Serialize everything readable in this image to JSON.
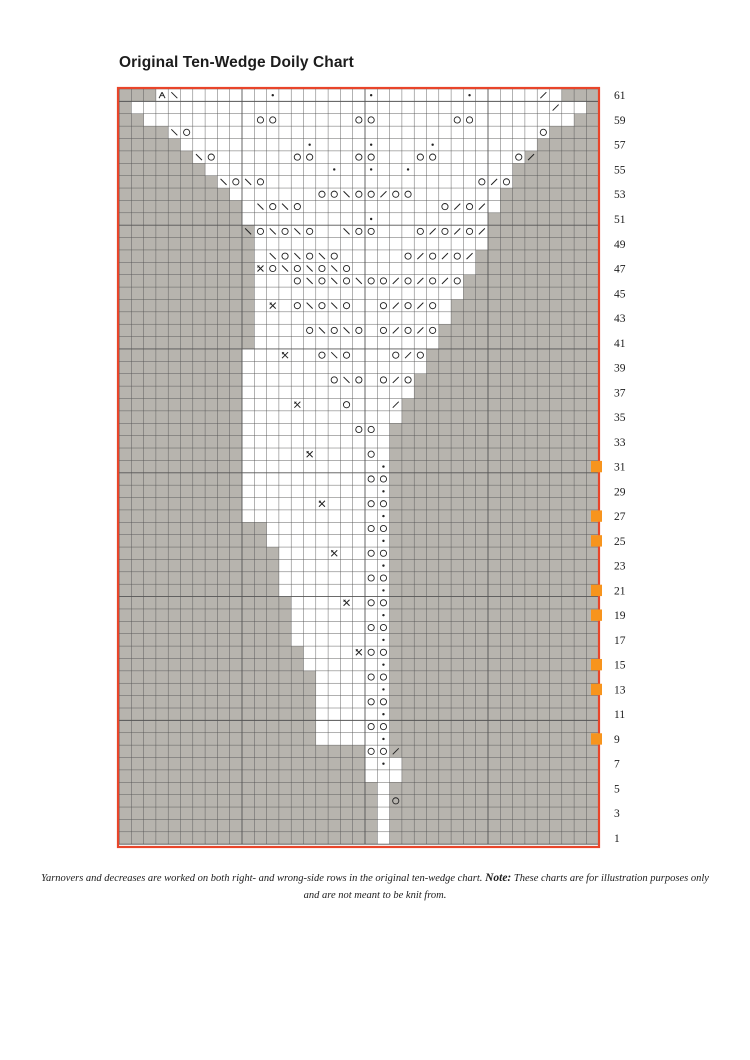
{
  "title": "Original Ten-Wedge Doily Chart",
  "caption": {
    "text_before": "Yarnovers and decreases are worked on both right- and wrong-side rows in the original ten-wedge chart.",
    "note_label": "Note:",
    "text_after": "These charts are for illustration purposes only and are not meant to be knit from."
  },
  "row_labels": [
    "61",
    "59",
    "57",
    "55",
    "53",
    "51",
    "49",
    "47",
    "45",
    "43",
    "41",
    "39",
    "37",
    "35",
    "33",
    "31",
    "29",
    "27",
    "25",
    "23",
    "21",
    "19",
    "17",
    "15",
    "13",
    "11",
    "9",
    "7",
    "5",
    "3",
    "1"
  ],
  "marked_rows": [
    31,
    27,
    25,
    21,
    19,
    15,
    13,
    9
  ],
  "colors": {
    "border": "#e8452a",
    "no_stitch": "#b7b4ae",
    "stitch": "#ffffff",
    "grid_line": "#555555",
    "marker": "#f7941d",
    "symbol": "#222222"
  },
  "chart_data": {
    "type": "knitting-chart",
    "rows": 61,
    "columns": 39,
    "white_spans_by_row": {
      "1": [
        [
          21,
          21
        ]
      ],
      "2": [
        [
          21,
          21
        ]
      ],
      "3": [
        [
          21,
          21
        ]
      ],
      "4": [
        [
          21,
          21
        ]
      ],
      "5": [
        [
          21,
          21
        ]
      ],
      "6": [
        [
          20,
          22
        ]
      ],
      "7": [
        [
          20,
          22
        ]
      ],
      "8": [
        [
          20,
          21
        ]
      ],
      "9": [
        [
          16,
          21
        ]
      ],
      "10": [
        [
          16,
          21
        ]
      ],
      "11": [
        [
          16,
          21
        ]
      ],
      "12": [
        [
          16,
          21
        ]
      ],
      "13": [
        [
          16,
          21
        ]
      ],
      "14": [
        [
          16,
          21
        ]
      ],
      "15": [
        [
          15,
          21
        ]
      ],
      "16": [
        [
          15,
          21
        ]
      ],
      "17": [
        [
          14,
          21
        ]
      ],
      "18": [
        [
          14,
          21
        ]
      ],
      "19": [
        [
          14,
          21
        ]
      ],
      "20": [
        [
          14,
          21
        ]
      ],
      "21": [
        [
          13,
          21
        ]
      ],
      "22": [
        [
          13,
          21
        ]
      ],
      "23": [
        [
          13,
          21
        ]
      ],
      "24": [
        [
          13,
          21
        ]
      ],
      "25": [
        [
          12,
          21
        ]
      ],
      "26": [
        [
          12,
          21
        ]
      ],
      "27": [
        [
          10,
          21
        ]
      ],
      "28": [
        [
          10,
          21
        ]
      ],
      "29": [
        [
          10,
          21
        ]
      ],
      "30": [
        [
          10,
          21
        ]
      ],
      "31": [
        [
          10,
          21
        ]
      ],
      "32": [
        [
          10,
          21
        ]
      ],
      "33": [
        [
          10,
          21
        ]
      ],
      "34": [
        [
          10,
          21
        ]
      ],
      "35": [
        [
          10,
          22
        ]
      ],
      "36": [
        [
          10,
          22
        ]
      ],
      "37": [
        [
          10,
          23
        ]
      ],
      "38": [
        [
          10,
          23
        ]
      ],
      "39": [
        [
          10,
          24
        ]
      ],
      "40": [
        [
          10,
          24
        ]
      ],
      "41": [
        [
          11,
          25
        ]
      ],
      "42": [
        [
          11,
          25
        ]
      ],
      "43": [
        [
          11,
          26
        ]
      ],
      "44": [
        [
          11,
          26
        ]
      ],
      "45": [
        [
          11,
          27
        ]
      ],
      "46": [
        [
          11,
          27
        ]
      ],
      "47": [
        [
          11,
          28
        ]
      ],
      "48": [
        [
          11,
          28
        ]
      ],
      "49": [
        [
          11,
          29
        ]
      ],
      "50": [
        [
          11,
          29
        ]
      ],
      "51": [
        [
          10,
          29
        ]
      ],
      "52": [
        [
          10,
          30
        ]
      ],
      "53": [
        [
          9,
          30
        ]
      ],
      "54": [
        [
          8,
          31
        ]
      ],
      "55": [
        [
          7,
          31
        ]
      ],
      "56": [
        [
          6,
          32
        ]
      ],
      "57": [
        [
          5,
          33
        ]
      ],
      "58": [
        [
          4,
          34
        ]
      ],
      "59": [
        [
          2,
          36
        ]
      ],
      "60": [
        [
          1,
          37
        ]
      ],
      "61": [
        [
          3,
          35
        ]
      ]
    },
    "symbols": [
      {
        "row": 61,
        "col": 3,
        "sym": "ssk-sl"
      },
      {
        "row": 61,
        "col": 4,
        "sym": "ssk"
      },
      {
        "row": 61,
        "col": 12,
        "sym": "dot"
      },
      {
        "row": 61,
        "col": 20,
        "sym": "dot"
      },
      {
        "row": 61,
        "col": 28,
        "sym": "dot"
      },
      {
        "row": 61,
        "col": 34,
        "sym": "k2tog"
      },
      {
        "row": 60,
        "col": 35,
        "sym": "k2tog"
      },
      {
        "row": 59,
        "col": 11,
        "sym": "yo"
      },
      {
        "row": 59,
        "col": 12,
        "sym": "yo"
      },
      {
        "row": 59,
        "col": 19,
        "sym": "yo"
      },
      {
        "row": 59,
        "col": 20,
        "sym": "yo"
      },
      {
        "row": 59,
        "col": 27,
        "sym": "yo"
      },
      {
        "row": 59,
        "col": 28,
        "sym": "yo"
      },
      {
        "row": 58,
        "col": 4,
        "sym": "ssk"
      },
      {
        "row": 58,
        "col": 5,
        "sym": "yo"
      },
      {
        "row": 58,
        "col": 34,
        "sym": "yo"
      },
      {
        "row": 57,
        "col": 15,
        "sym": "dot"
      },
      {
        "row": 57,
        "col": 20,
        "sym": "dot"
      },
      {
        "row": 57,
        "col": 25,
        "sym": "dot"
      },
      {
        "row": 56,
        "col": 6,
        "sym": "ssk"
      },
      {
        "row": 56,
        "col": 7,
        "sym": "yo"
      },
      {
        "row": 56,
        "col": 14,
        "sym": "yo"
      },
      {
        "row": 56,
        "col": 15,
        "sym": "yo"
      },
      {
        "row": 56,
        "col": 19,
        "sym": "yo"
      },
      {
        "row": 56,
        "col": 20,
        "sym": "yo"
      },
      {
        "row": 56,
        "col": 24,
        "sym": "yo"
      },
      {
        "row": 56,
        "col": 25,
        "sym": "yo"
      },
      {
        "row": 56,
        "col": 32,
        "sym": "yo"
      },
      {
        "row": 56,
        "col": 33,
        "sym": "k2tog"
      },
      {
        "row": 55,
        "col": 17,
        "sym": "dot"
      },
      {
        "row": 55,
        "col": 20,
        "sym": "dot"
      },
      {
        "row": 55,
        "col": 23,
        "sym": "dot"
      },
      {
        "row": 54,
        "col": 8,
        "sym": "ssk"
      },
      {
        "row": 54,
        "col": 9,
        "sym": "yo"
      },
      {
        "row": 54,
        "col": 10,
        "sym": "ssk"
      },
      {
        "row": 54,
        "col": 11,
        "sym": "yo"
      },
      {
        "row": 54,
        "col": 29,
        "sym": "yo"
      },
      {
        "row": 54,
        "col": 30,
        "sym": "k2tog"
      },
      {
        "row": 54,
        "col": 31,
        "sym": "yo"
      },
      {
        "row": 53,
        "col": 16,
        "sym": "yo"
      },
      {
        "row": 53,
        "col": 17,
        "sym": "yo"
      },
      {
        "row": 53,
        "col": 18,
        "sym": "ssk"
      },
      {
        "row": 53,
        "col": 19,
        "sym": "yo"
      },
      {
        "row": 53,
        "col": 20,
        "sym": "yo"
      },
      {
        "row": 53,
        "col": 21,
        "sym": "k2tog"
      },
      {
        "row": 53,
        "col": 22,
        "sym": "yo"
      },
      {
        "row": 53,
        "col": 23,
        "sym": "yo"
      },
      {
        "row": 52,
        "col": 11,
        "sym": "ssk"
      },
      {
        "row": 52,
        "col": 12,
        "sym": "yo"
      },
      {
        "row": 52,
        "col": 13,
        "sym": "ssk"
      },
      {
        "row": 52,
        "col": 14,
        "sym": "yo"
      },
      {
        "row": 52,
        "col": 26,
        "sym": "yo"
      },
      {
        "row": 52,
        "col": 27,
        "sym": "k2tog"
      },
      {
        "row": 52,
        "col": 28,
        "sym": "yo"
      },
      {
        "row": 52,
        "col": 29,
        "sym": "k2tog"
      },
      {
        "row": 51,
        "col": 20,
        "sym": "dot"
      },
      {
        "row": 50,
        "col": 10,
        "sym": "ssk"
      },
      {
        "row": 50,
        "col": 11,
        "sym": "yo"
      },
      {
        "row": 50,
        "col": 12,
        "sym": "ssk"
      },
      {
        "row": 50,
        "col": 13,
        "sym": "yo"
      },
      {
        "row": 50,
        "col": 14,
        "sym": "ssk"
      },
      {
        "row": 50,
        "col": 15,
        "sym": "yo"
      },
      {
        "row": 50,
        "col": 18,
        "sym": "ssk"
      },
      {
        "row": 50,
        "col": 19,
        "sym": "yo"
      },
      {
        "row": 50,
        "col": 20,
        "sym": "yo"
      },
      {
        "row": 50,
        "col": 24,
        "sym": "yo"
      },
      {
        "row": 50,
        "col": 25,
        "sym": "k2tog"
      },
      {
        "row": 50,
        "col": 26,
        "sym": "yo"
      },
      {
        "row": 50,
        "col": 27,
        "sym": "k2tog"
      },
      {
        "row": 50,
        "col": 28,
        "sym": "yo"
      },
      {
        "row": 50,
        "col": 29,
        "sym": "k2tog"
      },
      {
        "row": 48,
        "col": 12,
        "sym": "ssk"
      },
      {
        "row": 48,
        "col": 13,
        "sym": "yo"
      },
      {
        "row": 48,
        "col": 14,
        "sym": "ssk"
      },
      {
        "row": 48,
        "col": 15,
        "sym": "yo"
      },
      {
        "row": 48,
        "col": 16,
        "sym": "ssk"
      },
      {
        "row": 48,
        "col": 17,
        "sym": "yo"
      },
      {
        "row": 48,
        "col": 23,
        "sym": "yo"
      },
      {
        "row": 48,
        "col": 24,
        "sym": "k2tog"
      },
      {
        "row": 48,
        "col": 25,
        "sym": "yo"
      },
      {
        "row": 48,
        "col": 26,
        "sym": "k2tog"
      },
      {
        "row": 48,
        "col": 27,
        "sym": "yo"
      },
      {
        "row": 48,
        "col": 28,
        "sym": "k2tog"
      },
      {
        "row": 47,
        "col": 11,
        "sym": "cdd"
      },
      {
        "row": 47,
        "col": 12,
        "sym": "yo"
      },
      {
        "row": 47,
        "col": 13,
        "sym": "ssk"
      },
      {
        "row": 47,
        "col": 14,
        "sym": "yo"
      },
      {
        "row": 47,
        "col": 15,
        "sym": "ssk"
      },
      {
        "row": 47,
        "col": 16,
        "sym": "yo"
      },
      {
        "row": 47,
        "col": 17,
        "sym": "ssk"
      },
      {
        "row": 47,
        "col": 18,
        "sym": "yo"
      },
      {
        "row": 46,
        "col": 14,
        "sym": "yo"
      },
      {
        "row": 46,
        "col": 15,
        "sym": "ssk"
      },
      {
        "row": 46,
        "col": 16,
        "sym": "yo"
      },
      {
        "row": 46,
        "col": 17,
        "sym": "ssk"
      },
      {
        "row": 46,
        "col": 18,
        "sym": "yo"
      },
      {
        "row": 46,
        "col": 19,
        "sym": "ssk"
      },
      {
        "row": 46,
        "col": 20,
        "sym": "yo"
      },
      {
        "row": 46,
        "col": 21,
        "sym": "yo"
      },
      {
        "row": 46,
        "col": 22,
        "sym": "k2tog"
      },
      {
        "row": 46,
        "col": 23,
        "sym": "yo"
      },
      {
        "row": 46,
        "col": 24,
        "sym": "k2tog"
      },
      {
        "row": 46,
        "col": 25,
        "sym": "yo"
      },
      {
        "row": 46,
        "col": 26,
        "sym": "k2tog"
      },
      {
        "row": 46,
        "col": 27,
        "sym": "yo"
      },
      {
        "row": 44,
        "col": 12,
        "sym": "cdd"
      },
      {
        "row": 44,
        "col": 14,
        "sym": "yo"
      },
      {
        "row": 44,
        "col": 15,
        "sym": "ssk"
      },
      {
        "row": 44,
        "col": 16,
        "sym": "yo"
      },
      {
        "row": 44,
        "col": 17,
        "sym": "ssk"
      },
      {
        "row": 44,
        "col": 18,
        "sym": "yo"
      },
      {
        "row": 44,
        "col": 21,
        "sym": "yo"
      },
      {
        "row": 44,
        "col": 22,
        "sym": "k2tog"
      },
      {
        "row": 44,
        "col": 23,
        "sym": "yo"
      },
      {
        "row": 44,
        "col": 24,
        "sym": "k2tog"
      },
      {
        "row": 44,
        "col": 25,
        "sym": "yo"
      },
      {
        "row": 42,
        "col": 15,
        "sym": "yo"
      },
      {
        "row": 42,
        "col": 16,
        "sym": "ssk"
      },
      {
        "row": 42,
        "col": 17,
        "sym": "yo"
      },
      {
        "row": 42,
        "col": 18,
        "sym": "ssk"
      },
      {
        "row": 42,
        "col": 19,
        "sym": "yo"
      },
      {
        "row": 42,
        "col": 21,
        "sym": "yo"
      },
      {
        "row": 42,
        "col": 22,
        "sym": "k2tog"
      },
      {
        "row": 42,
        "col": 23,
        "sym": "yo"
      },
      {
        "row": 42,
        "col": 24,
        "sym": "k2tog"
      },
      {
        "row": 42,
        "col": 25,
        "sym": "yo"
      },
      {
        "row": 40,
        "col": 13,
        "sym": "cdd"
      },
      {
        "row": 40,
        "col": 16,
        "sym": "yo"
      },
      {
        "row": 40,
        "col": 17,
        "sym": "ssk"
      },
      {
        "row": 40,
        "col": 18,
        "sym": "yo"
      },
      {
        "row": 40,
        "col": 22,
        "sym": "yo"
      },
      {
        "row": 40,
        "col": 23,
        "sym": "k2tog"
      },
      {
        "row": 40,
        "col": 24,
        "sym": "yo"
      },
      {
        "row": 38,
        "col": 17,
        "sym": "yo"
      },
      {
        "row": 38,
        "col": 18,
        "sym": "ssk"
      },
      {
        "row": 38,
        "col": 19,
        "sym": "yo"
      },
      {
        "row": 38,
        "col": 21,
        "sym": "yo"
      },
      {
        "row": 38,
        "col": 22,
        "sym": "k2tog"
      },
      {
        "row": 38,
        "col": 23,
        "sym": "yo"
      },
      {
        "row": 36,
        "col": 14,
        "sym": "cdd"
      },
      {
        "row": 36,
        "col": 18,
        "sym": "yo"
      },
      {
        "row": 36,
        "col": 22,
        "sym": "k2tog"
      },
      {
        "row": 34,
        "col": 19,
        "sym": "yo"
      },
      {
        "row": 34,
        "col": 20,
        "sym": "yo"
      },
      {
        "row": 32,
        "col": 15,
        "sym": "cdd"
      },
      {
        "row": 32,
        "col": 20,
        "sym": "yo"
      },
      {
        "row": 31,
        "col": 21,
        "sym": "dot"
      },
      {
        "row": 30,
        "col": 20,
        "sym": "yo"
      },
      {
        "row": 30,
        "col": 21,
        "sym": "yo"
      },
      {
        "row": 29,
        "col": 21,
        "sym": "dot"
      },
      {
        "row": 28,
        "col": 16,
        "sym": "cdd"
      },
      {
        "row": 28,
        "col": 20,
        "sym": "yo"
      },
      {
        "row": 28,
        "col": 21,
        "sym": "yo"
      },
      {
        "row": 27,
        "col": 21,
        "sym": "dot"
      },
      {
        "row": 26,
        "col": 20,
        "sym": "yo"
      },
      {
        "row": 26,
        "col": 21,
        "sym": "yo"
      },
      {
        "row": 25,
        "col": 21,
        "sym": "dot"
      },
      {
        "row": 24,
        "col": 17,
        "sym": "cdd"
      },
      {
        "row": 24,
        "col": 20,
        "sym": "yo"
      },
      {
        "row": 24,
        "col": 21,
        "sym": "yo"
      },
      {
        "row": 23,
        "col": 21,
        "sym": "dot"
      },
      {
        "row": 22,
        "col": 20,
        "sym": "yo"
      },
      {
        "row": 22,
        "col": 21,
        "sym": "yo"
      },
      {
        "row": 21,
        "col": 21,
        "sym": "dot"
      },
      {
        "row": 20,
        "col": 18,
        "sym": "cdd"
      },
      {
        "row": 20,
        "col": 20,
        "sym": "yo"
      },
      {
        "row": 20,
        "col": 21,
        "sym": "yo"
      },
      {
        "row": 19,
        "col": 21,
        "sym": "dot"
      },
      {
        "row": 18,
        "col": 20,
        "sym": "yo"
      },
      {
        "row": 18,
        "col": 21,
        "sym": "yo"
      },
      {
        "row": 17,
        "col": 21,
        "sym": "dot"
      },
      {
        "row": 16,
        "col": 19,
        "sym": "cdd"
      },
      {
        "row": 16,
        "col": 20,
        "sym": "yo"
      },
      {
        "row": 16,
        "col": 21,
        "sym": "yo"
      },
      {
        "row": 15,
        "col": 21,
        "sym": "dot"
      },
      {
        "row": 14,
        "col": 20,
        "sym": "yo"
      },
      {
        "row": 14,
        "col": 21,
        "sym": "yo"
      },
      {
        "row": 13,
        "col": 21,
        "sym": "dot"
      },
      {
        "row": 12,
        "col": 20,
        "sym": "yo"
      },
      {
        "row": 12,
        "col": 21,
        "sym": "yo"
      },
      {
        "row": 11,
        "col": 21,
        "sym": "dot"
      },
      {
        "row": 10,
        "col": 20,
        "sym": "yo"
      },
      {
        "row": 10,
        "col": 21,
        "sym": "yo"
      },
      {
        "row": 9,
        "col": 21,
        "sym": "dot"
      },
      {
        "row": 8,
        "col": 20,
        "sym": "yo"
      },
      {
        "row": 8,
        "col": 21,
        "sym": "yo"
      },
      {
        "row": 8,
        "col": 22,
        "sym": "k2tog"
      },
      {
        "row": 7,
        "col": 21,
        "sym": "dot"
      },
      {
        "row": 4,
        "col": 22,
        "sym": "yo"
      }
    ]
  }
}
